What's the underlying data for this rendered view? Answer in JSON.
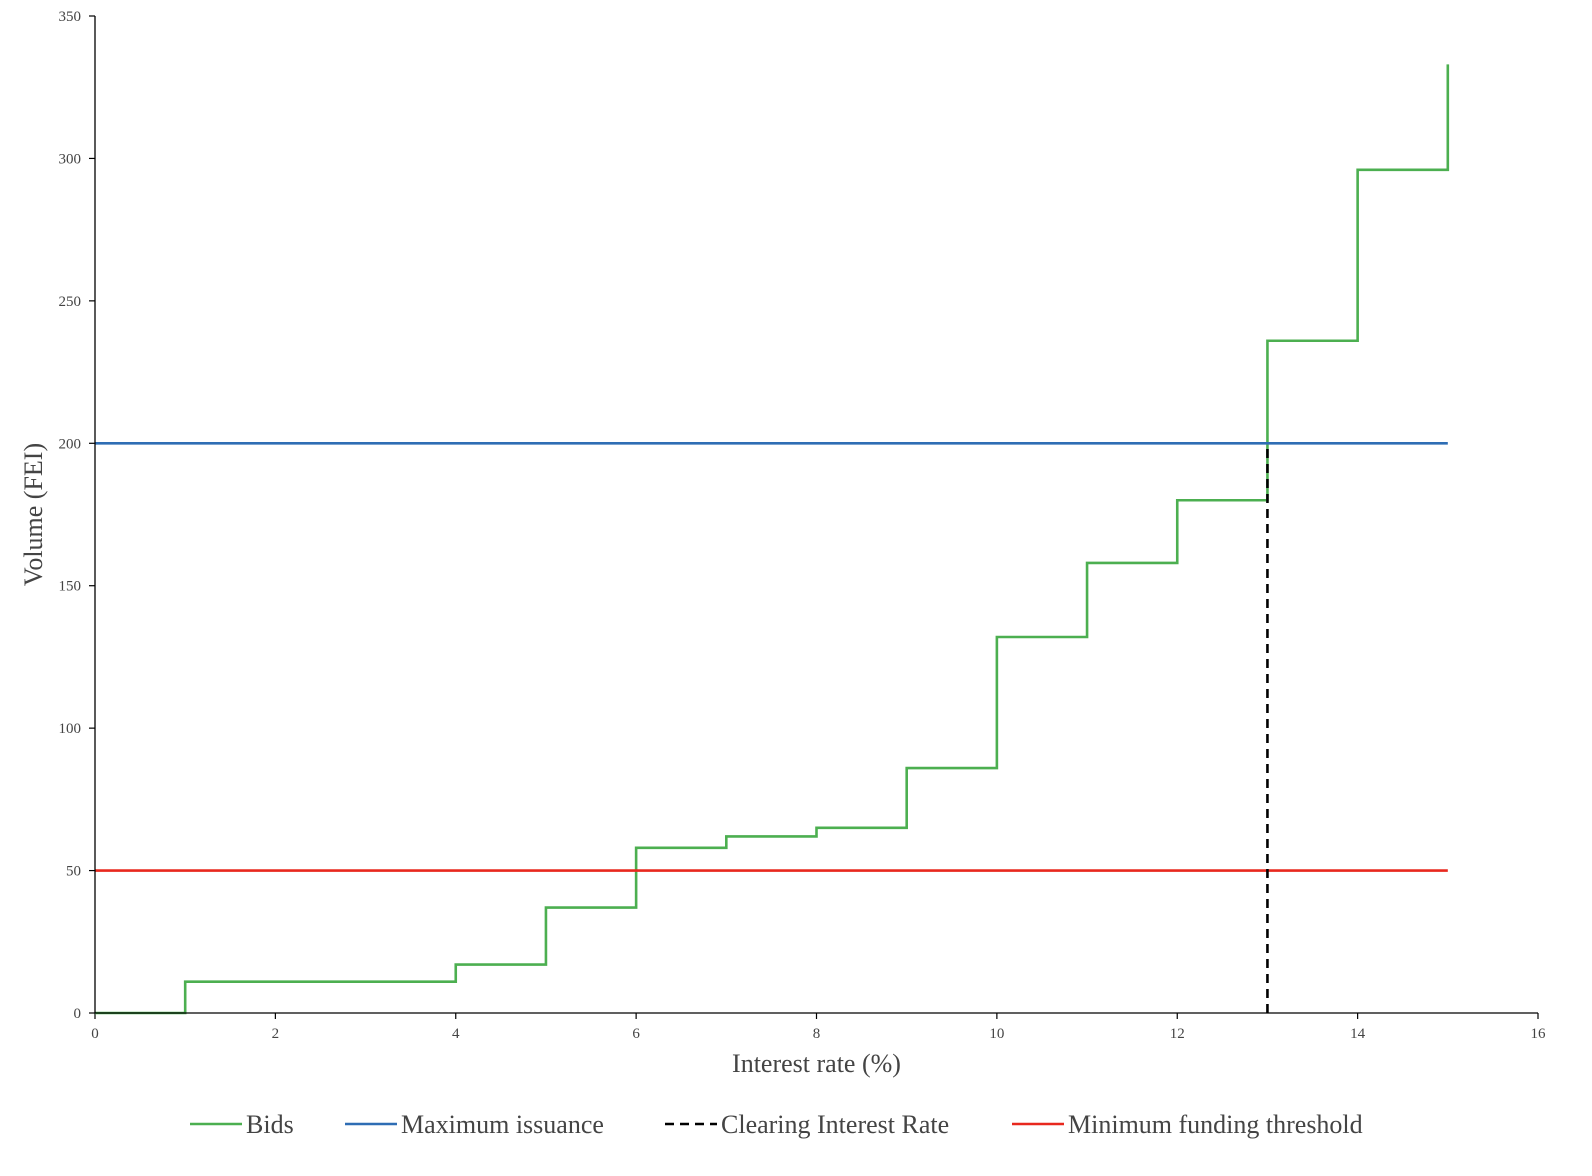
{
  "chart_data": {
    "type": "line",
    "title": "",
    "xlabel": "Interest rate (%)",
    "ylabel": "Volume (FEI)",
    "xlim": [
      0,
      16
    ],
    "ylim": [
      0,
      350
    ],
    "x_ticks": [
      0,
      2,
      4,
      6,
      8,
      10,
      12,
      14,
      16
    ],
    "y_ticks": [
      0,
      50,
      100,
      150,
      200,
      250,
      300,
      350
    ],
    "x_tick_labels": [
      "0",
      "2",
      "4",
      "6",
      "8",
      "10",
      "12",
      "14",
      "16"
    ],
    "y_tick_labels": [
      "0",
      "50",
      "100",
      "150",
      "200",
      "250",
      "300",
      "350"
    ],
    "grid": false,
    "legend_position": "bottom",
    "series": [
      {
        "name": "Bids",
        "style": "step",
        "color": "#4caf50",
        "x": [
          0,
          1,
          1,
          4,
          4,
          5,
          5,
          6,
          6,
          7,
          7,
          8,
          8,
          9,
          9,
          10,
          10,
          11,
          11,
          12,
          12,
          13,
          13,
          14,
          14,
          15,
          15
        ],
        "y": [
          0,
          0,
          11,
          11,
          17,
          17,
          37,
          37,
          58,
          58,
          62,
          62,
          65,
          65,
          86,
          86,
          132,
          132,
          158,
          158,
          180,
          180,
          236,
          236,
          296,
          296,
          333
        ]
      },
      {
        "name": "Maximum issuance",
        "style": "line",
        "color": "#2e6db4",
        "x": [
          0,
          15
        ],
        "y": [
          200,
          200
        ]
      },
      {
        "name": "Clearing Interest Rate",
        "style": "dashed",
        "color": "#000000",
        "x": [
          13,
          13
        ],
        "y": [
          0,
          200
        ]
      },
      {
        "name": "Minimum funding threshold",
        "style": "line",
        "color": "#e8281e",
        "x": [
          0,
          15
        ],
        "y": [
          50,
          50
        ]
      }
    ]
  }
}
